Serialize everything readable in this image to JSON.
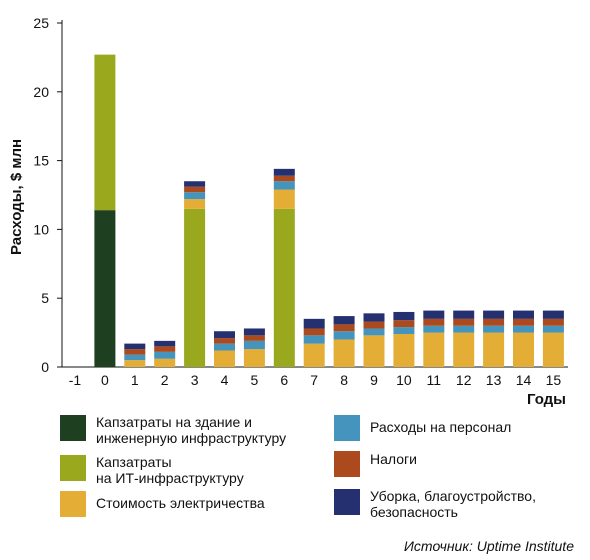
{
  "chart_data": {
    "type": "bar",
    "stacked": true,
    "categories": [
      "-1",
      "0",
      "1",
      "2",
      "3",
      "4",
      "5",
      "6",
      "7",
      "8",
      "9",
      "10",
      "11",
      "12",
      "13",
      "14",
      "15"
    ],
    "xlabel": "Годы",
    "ylabel": "Расходы, $ млн",
    "ylim": [
      0,
      25
    ],
    "yticks": [
      "0",
      "5",
      "10",
      "15",
      "20",
      "25"
    ],
    "grid": false,
    "legend_position": "bottom",
    "series": [
      {
        "name": "Капзатраты на здание и\nинженерную инфраструктуру",
        "color": "#1e4020",
        "values": [
          0,
          11.4,
          0,
          0,
          0,
          0,
          0,
          0,
          0,
          0,
          0,
          0,
          0,
          0,
          0,
          0,
          0
        ]
      },
      {
        "name": "Капзатраты\nна ИТ-инфраструктуру",
        "color": "#9aa81d",
        "values": [
          0,
          11.3,
          0,
          0,
          11.5,
          0,
          0,
          11.5,
          0,
          0,
          0,
          0,
          0,
          0,
          0,
          0,
          0
        ]
      },
      {
        "name": "Стоимость электричества",
        "color": "#e4ad35",
        "values": [
          0,
          0,
          0.5,
          0.6,
          0.7,
          1.2,
          1.3,
          1.4,
          1.7,
          2.0,
          2.3,
          2.4,
          2.5,
          2.5,
          2.5,
          2.5,
          2.5
        ]
      },
      {
        "name": "Расходы на персонал",
        "color": "#4494be",
        "values": [
          0,
          0,
          0.4,
          0.5,
          0.5,
          0.5,
          0.6,
          0.6,
          0.6,
          0.6,
          0.5,
          0.5,
          0.5,
          0.5,
          0.5,
          0.5,
          0.5
        ]
      },
      {
        "name": "Налоги",
        "color": "#ad4a1d",
        "values": [
          0,
          0,
          0.4,
          0.4,
          0.4,
          0.4,
          0.4,
          0.4,
          0.5,
          0.5,
          0.5,
          0.5,
          0.5,
          0.5,
          0.5,
          0.5,
          0.5
        ]
      },
      {
        "name": "Уборка, благоустройство,\nбезопасность",
        "color": "#243070",
        "values": [
          0,
          0,
          0.4,
          0.4,
          0.4,
          0.5,
          0.5,
          0.5,
          0.7,
          0.6,
          0.6,
          0.6,
          0.6,
          0.6,
          0.6,
          0.6,
          0.6
        ]
      }
    ]
  },
  "legend": {
    "items": [
      {
        "label": "Капзатраты на здание и\nинженерную инфраструктуру",
        "color": "#1e4020"
      },
      {
        "label": "Капзатраты\nна ИТ-инфраструктуру",
        "color": "#9aa81d"
      },
      {
        "label": "Стоимость электричества",
        "color": "#e4ad35"
      },
      {
        "label": "Расходы на персонал",
        "color": "#4494be"
      },
      {
        "label": "Налоги",
        "color": "#ad4a1d"
      },
      {
        "label": "Уборка, благоустройство,\nбезопасность",
        "color": "#243070"
      }
    ]
  },
  "source": "Источник: Uptime Institute"
}
